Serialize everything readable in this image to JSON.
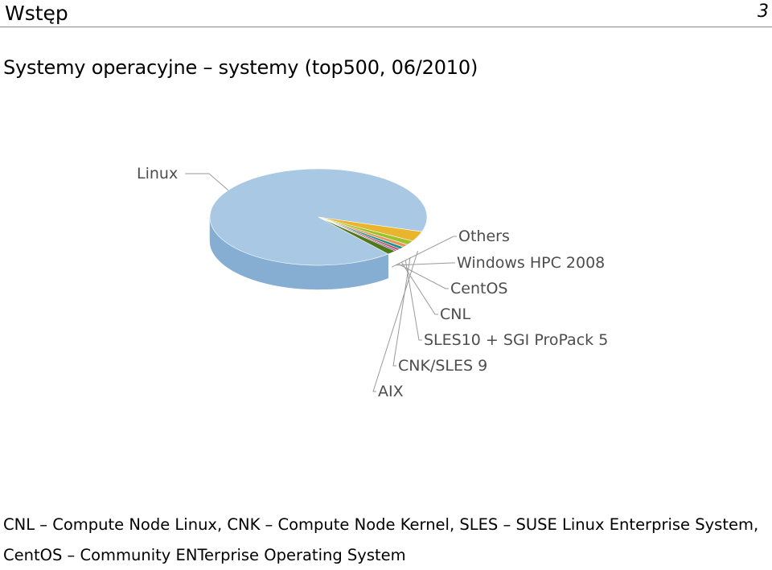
{
  "header": {
    "title": "Wstęp",
    "page_number": "3"
  },
  "slide_title": "Systemy operacyjne – systemy (top500, 06/2010)",
  "chart_data": {
    "type": "pie",
    "style": "3d",
    "title": "",
    "slices": [
      {
        "label": "Linux",
        "value": 91.0,
        "color": "#a9c8e4",
        "side": "#86aed3"
      },
      {
        "label": "AIX",
        "value": 3.4,
        "color": "#e9b52c",
        "side": "#c9971a"
      },
      {
        "label": "CNK/SLES 9",
        "value": 1.4,
        "color": "#9ac22a",
        "side": "#7ea41c"
      },
      {
        "label": "SLES10 + SGI ProPack 5",
        "value": 1.0,
        "color": "#e9955a",
        "side": "#c97a42"
      },
      {
        "label": "CNL",
        "value": 0.8,
        "color": "#149292",
        "side": "#0d7575"
      },
      {
        "label": "CentOS",
        "value": 0.6,
        "color": "#c34a5c",
        "side": "#a23848"
      },
      {
        "label": "Windows HPC 2008",
        "value": 0.4,
        "color": "#7e4b99",
        "side": "#633a7a"
      },
      {
        "label": "Others",
        "value": 1.4,
        "color": "#4f7a17",
        "side": "#3d5f10"
      }
    ]
  },
  "footnotes": {
    "line1": "CNL – Compute Node Linux, CNK – Compute Node Kernel, SLES – SUSE Linux Enterprise System,",
    "line2": "CentOS – Community ENTerprise Operating System"
  }
}
